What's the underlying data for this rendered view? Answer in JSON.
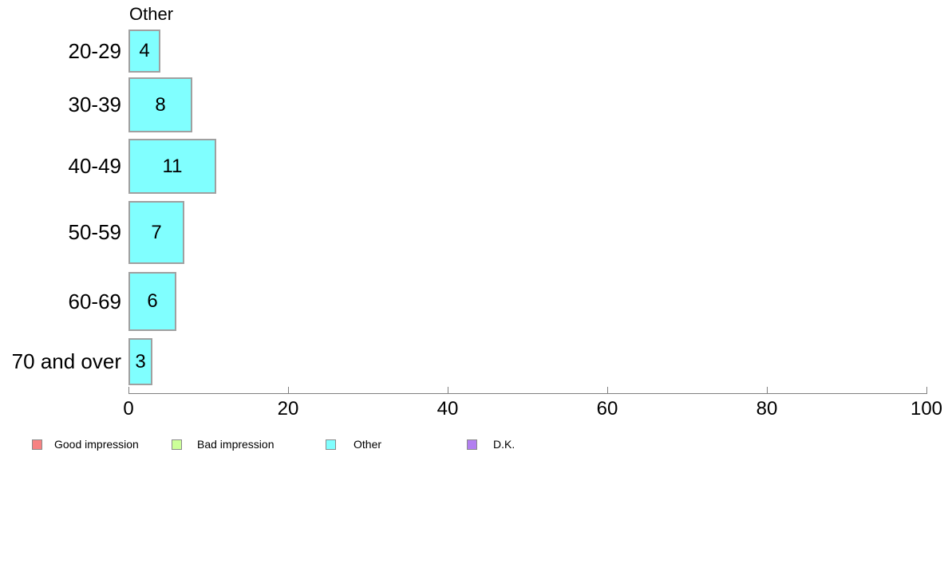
{
  "chart_data": {
    "type": "bar",
    "orientation": "horizontal",
    "title": "Other",
    "categories": [
      "20-29",
      "30-39",
      "40-49",
      "50-59",
      "60-69",
      "70 and over"
    ],
    "values": [
      4,
      8,
      11,
      7,
      6,
      3
    ],
    "value_labels": [
      "4",
      "8",
      "11",
      "7",
      "6",
      "3"
    ],
    "xlabel": "",
    "ylabel": "",
    "xlim": [
      0,
      100
    ],
    "x_ticks": [
      0,
      20,
      40,
      60,
      80,
      100
    ],
    "grid": false,
    "legend_position": "bottom",
    "bar_color": "#80ffff",
    "bar_border_color": "#a0a0a0",
    "axis_color": "#808080"
  },
  "legend": {
    "items": [
      {
        "label": "Good impression",
        "color": "#f78282"
      },
      {
        "label": "Bad impression",
        "color": "#ccff99"
      },
      {
        "label": "Other",
        "color": "#80ffff"
      },
      {
        "label": "D.K.",
        "color": "#b27ff0"
      }
    ]
  }
}
